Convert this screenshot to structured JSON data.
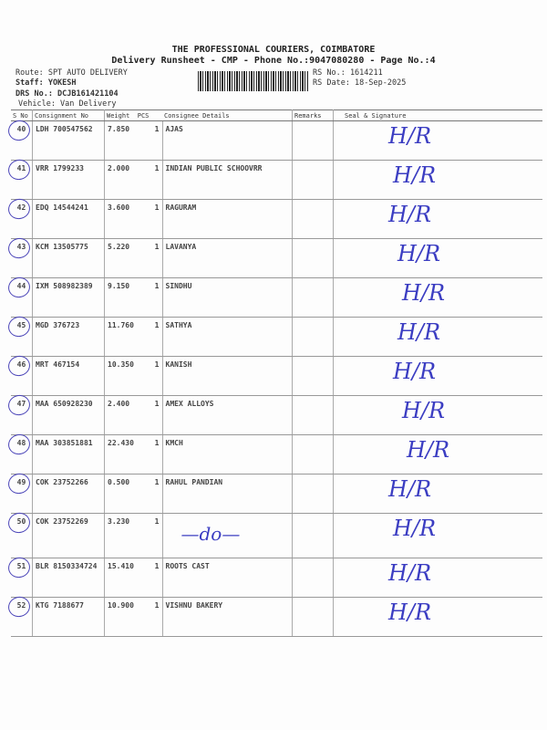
{
  "header": {
    "company": "THE PROFESSIONAL COURIERS, COIMBATORE",
    "subtitle": "Delivery Runsheet - CMP - Phone No.:9047080280 - Page No.:4",
    "route": "Route: SPT AUTO DELIVERY",
    "staff": "Staff: YOKESH",
    "drs": "DRS No.: DCJB161421104",
    "vehicle": "Vehicle: Van Delivery",
    "rs_no": "RS No.: 1614211",
    "rs_date": "RS Date: 18-Sep-2025"
  },
  "table": {
    "columns": [
      "S No",
      "Consignment No",
      "Weight",
      "PCS",
      "Consignee Details",
      "Remarks",
      "Seal & Signature"
    ],
    "rows": [
      {
        "sno": "40",
        "cn": "LDH 700547562",
        "wt": "7.850",
        "pcs": "1",
        "name": "AJAS",
        "sig": "H/R"
      },
      {
        "sno": "41",
        "cn": "VRR 1799233",
        "wt": "2.000",
        "pcs": "1",
        "name": "INDIAN PUBLIC SCHOOVRR",
        "sig": "H/R"
      },
      {
        "sno": "42",
        "cn": "EDQ 14544241",
        "wt": "3.600",
        "pcs": "1",
        "name": "RAGURAM",
        "sig": "H/R"
      },
      {
        "sno": "43",
        "cn": "KCM 13505775",
        "wt": "5.220",
        "pcs": "1",
        "name": "LAVANYA",
        "sig": "H/R"
      },
      {
        "sno": "44",
        "cn": "IXM 508982389",
        "wt": "9.150",
        "pcs": "1",
        "name": "SINDHU",
        "sig": "H/R"
      },
      {
        "sno": "45",
        "cn": "MGD 376723",
        "wt": "11.760",
        "pcs": "1",
        "name": "SATHYA",
        "sig": "H/R"
      },
      {
        "sno": "46",
        "cn": "MRT 467154",
        "wt": "10.350",
        "pcs": "1",
        "name": "KANISH",
        "sig": "H/R"
      },
      {
        "sno": "47",
        "cn": "MAA 650928230",
        "wt": "2.400",
        "pcs": "1",
        "name": "AMEX ALLOYS",
        "sig": "H/R"
      },
      {
        "sno": "48",
        "cn": "MAA 303851881",
        "wt": "22.430",
        "pcs": "1",
        "name": "KMCH",
        "sig": "H/R"
      },
      {
        "sno": "49",
        "cn": "COK 23752266",
        "wt": "0.500",
        "pcs": "1",
        "name": "RAHUL PANDIAN",
        "sig": "H/R"
      },
      {
        "sno": "50",
        "cn": "COK 23752269",
        "wt": "3.230",
        "pcs": "1",
        "name": "—do—",
        "sig": "H/R"
      },
      {
        "sno": "51",
        "cn": "BLR 8150334724",
        "wt": "15.410",
        "pcs": "1",
        "name": "ROOTS CAST",
        "sig": "H/R"
      },
      {
        "sno": "52",
        "cn": "KTG 7188677",
        "wt": "10.900",
        "pcs": "1",
        "name": "VISHNU BAKERY",
        "sig": "H/R"
      }
    ]
  }
}
